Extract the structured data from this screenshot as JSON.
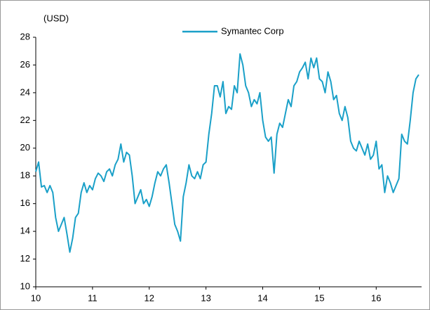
{
  "chart_data": {
    "type": "line",
    "ylabel": "(USD)",
    "legend": "top",
    "xlim": [
      10,
      16.8
    ],
    "xticks": [
      10,
      11,
      12,
      13,
      14,
      15,
      16
    ],
    "ylim": [
      10,
      28
    ],
    "yticks": [
      10,
      12,
      14,
      16,
      18,
      20,
      22,
      24,
      26,
      28
    ],
    "x": [
      10.0,
      10.05,
      10.1,
      10.15,
      10.2,
      10.25,
      10.3,
      10.35,
      10.4,
      10.45,
      10.5,
      10.55,
      10.6,
      10.65,
      10.7,
      10.75,
      10.8,
      10.85,
      10.9,
      10.95,
      11.0,
      11.05,
      11.1,
      11.15,
      11.2,
      11.25,
      11.3,
      11.35,
      11.4,
      11.45,
      11.5,
      11.55,
      11.6,
      11.65,
      11.7,
      11.75,
      11.8,
      11.85,
      11.9,
      11.95,
      12.0,
      12.05,
      12.1,
      12.15,
      12.2,
      12.25,
      12.3,
      12.35,
      12.4,
      12.45,
      12.5,
      12.55,
      12.6,
      12.65,
      12.7,
      12.75,
      12.8,
      12.85,
      12.9,
      12.95,
      13.0,
      13.05,
      13.1,
      13.15,
      13.2,
      13.25,
      13.3,
      13.35,
      13.4,
      13.45,
      13.5,
      13.55,
      13.6,
      13.65,
      13.7,
      13.75,
      13.8,
      13.85,
      13.9,
      13.95,
      14.0,
      14.05,
      14.1,
      14.15,
      14.2,
      14.25,
      14.3,
      14.35,
      14.4,
      14.45,
      14.5,
      14.55,
      14.6,
      14.65,
      14.7,
      14.75,
      14.8,
      14.85,
      14.9,
      14.95,
      15.0,
      15.05,
      15.1,
      15.15,
      15.2,
      15.25,
      15.3,
      15.35,
      15.4,
      15.45,
      15.5,
      15.55,
      15.6,
      15.65,
      15.7,
      15.75,
      15.8,
      15.85,
      15.9,
      15.95,
      16.0,
      16.05,
      16.1,
      16.15,
      16.2,
      16.25,
      16.3,
      16.35,
      16.4,
      16.45,
      16.5,
      16.55,
      16.6,
      16.65,
      16.7,
      16.75
    ],
    "series": [
      {
        "name": "Symantec Corp",
        "color": "#1aa0c8",
        "values": [
          18.3,
          19.0,
          17.2,
          17.3,
          16.8,
          17.3,
          16.8,
          15.0,
          14.0,
          14.5,
          15.0,
          13.8,
          12.5,
          13.5,
          15.0,
          15.3,
          16.8,
          17.5,
          16.8,
          17.3,
          17.0,
          17.8,
          18.2,
          18.0,
          17.6,
          18.3,
          18.5,
          18.0,
          18.8,
          19.2,
          20.3,
          19.0,
          19.7,
          19.5,
          18.0,
          16.0,
          16.5,
          17.0,
          16.0,
          16.3,
          15.8,
          16.5,
          17.5,
          18.3,
          18.0,
          18.5,
          18.8,
          17.5,
          16.0,
          14.5,
          14.0,
          13.3,
          16.5,
          17.5,
          18.8,
          18.0,
          17.8,
          18.3,
          17.8,
          18.8,
          19.0,
          21.0,
          22.5,
          24.5,
          24.5,
          23.7,
          24.8,
          22.5,
          23.0,
          22.8,
          24.5,
          24.0,
          26.8,
          26.0,
          24.5,
          24.0,
          23.0,
          23.5,
          23.2,
          24.0,
          22.0,
          20.8,
          20.5,
          20.8,
          18.2,
          21.0,
          21.8,
          21.5,
          22.5,
          23.5,
          23.0,
          24.5,
          24.8,
          25.5,
          25.8,
          26.2,
          25.0,
          26.5,
          25.8,
          26.5,
          25.0,
          24.8,
          24.0,
          25.5,
          24.8,
          23.5,
          23.8,
          22.5,
          22.0,
          23.0,
          22.2,
          20.5,
          20.0,
          19.8,
          20.5,
          20.0,
          19.5,
          20.3,
          19.2,
          19.5,
          20.5,
          18.5,
          18.8,
          16.8,
          18.0,
          17.5,
          16.8,
          17.3,
          17.8,
          21.0,
          20.5,
          20.3,
          22.0,
          24.0,
          25.0,
          25.3
        ]
      }
    ]
  }
}
